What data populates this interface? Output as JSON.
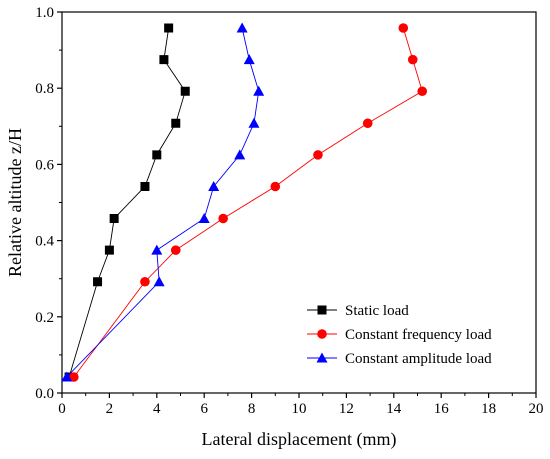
{
  "chart_data": {
    "type": "line",
    "title": "",
    "xlabel": "Lateral displacement (mm)",
    "ylabel": "Relative altitude z/H",
    "xlim": [
      0,
      20
    ],
    "ylim": [
      0,
      1.0
    ],
    "x_ticks": [
      "0",
      "2",
      "4",
      "6",
      "8",
      "10",
      "12",
      "14",
      "16",
      "18",
      "20"
    ],
    "y_ticks": [
      "0.0",
      "0.2",
      "0.4",
      "0.6",
      "0.8",
      "1.0"
    ],
    "grid": false,
    "legend_position": "bottom-right",
    "series": [
      {
        "name": "Static load",
        "color": "#000000",
        "marker": "square",
        "x": [
          0.3,
          1.5,
          2.0,
          2.2,
          3.5,
          4.0,
          4.8,
          5.2,
          4.3,
          4.5
        ],
        "y": [
          0.042,
          0.292,
          0.375,
          0.458,
          0.542,
          0.625,
          0.708,
          0.792,
          0.875,
          0.958
        ]
      },
      {
        "name": "Constant frequency load",
        "color": "#ff0000",
        "marker": "circle",
        "x": [
          0.5,
          3.5,
          4.8,
          6.8,
          9.0,
          10.8,
          12.9,
          15.2,
          14.8,
          14.4
        ],
        "y": [
          0.042,
          0.292,
          0.375,
          0.458,
          0.542,
          0.625,
          0.708,
          0.792,
          0.875,
          0.958
        ]
      },
      {
        "name": "Constant amplitude load",
        "color": "#0000ff",
        "marker": "triangle",
        "x": [
          0.2,
          4.1,
          4.0,
          6.0,
          6.4,
          7.5,
          8.1,
          8.3,
          7.9,
          7.6
        ],
        "y": [
          0.042,
          0.292,
          0.375,
          0.458,
          0.542,
          0.625,
          0.708,
          0.792,
          0.875,
          0.958
        ]
      }
    ]
  }
}
